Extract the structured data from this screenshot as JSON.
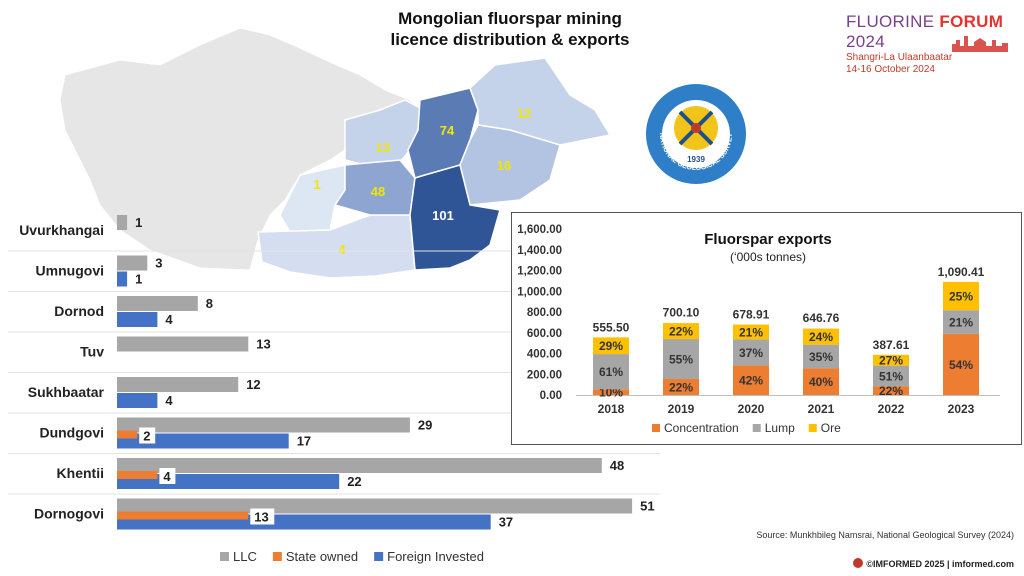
{
  "title": {
    "line1": "Mongolian fluorspar mining",
    "line2": "licence distribution & exports"
  },
  "brand": {
    "name_a": "FLUORINE ",
    "name_b": "FORUM",
    "name_c": " 2024",
    "venue": "Shangri-La Ulaanbaatar",
    "dates": "14-16 October 2024"
  },
  "seal": {
    "text": "NATIONAL GEOLOGICAL SURVEY",
    "year": "1939"
  },
  "map": {
    "regions": [
      {
        "id": "khentii",
        "value": "74",
        "color": "#5b7bb5"
      },
      {
        "id": "dornod",
        "value": "12",
        "color": "#c5d3ea"
      },
      {
        "id": "tuv",
        "value": "13",
        "color": "#c5d3ea"
      },
      {
        "id": "sukhbaatar",
        "value": "16",
        "color": "#b3c4e3"
      },
      {
        "id": "dundgovi",
        "value": "48",
        "color": "#8ea5d2"
      },
      {
        "id": "dornogovi",
        "value": "101",
        "color": "#2f5597"
      },
      {
        "id": "uvurkhangai",
        "value": "1",
        "color": "#dde6f3"
      },
      {
        "id": "umnugovi",
        "value": "4",
        "color": "#d4def0"
      }
    ],
    "label_color": "#f2e600",
    "label_color_dark": "#ffffff"
  },
  "chart_data": [
    {
      "type": "bar",
      "orientation": "horizontal",
      "categories": [
        "Uvurkhangai",
        "Umnugovi",
        "Dornod",
        "Tuv",
        "Sukhbaatar",
        "Dundgovi",
        "Khentii",
        "Dornogovi"
      ],
      "series": [
        {
          "name": "LLC",
          "color": "#a6a6a6",
          "values": [
            1,
            3,
            8,
            13,
            12,
            29,
            48,
            51
          ]
        },
        {
          "name": "State owned",
          "color": "#ed7d31",
          "values": [
            0,
            0,
            0,
            0,
            0,
            2,
            4,
            13
          ]
        },
        {
          "name": "Foreign Invested",
          "color": "#4472c4",
          "values": [
            0,
            1,
            4,
            0,
            4,
            17,
            22,
            37
          ]
        }
      ],
      "legend_position": "bottom"
    },
    {
      "type": "bar",
      "stacked": true,
      "title": "Fluorspar exports",
      "subtitle": "(‘000s tonnes)",
      "categories": [
        "2018",
        "2019",
        "2020",
        "2021",
        "2022",
        "2023"
      ],
      "totals": [
        "555.50",
        "700.10",
        "678.91",
        "646.76",
        "387.61",
        "1,090.41"
      ],
      "total_values": [
        555.5,
        700.1,
        678.91,
        646.76,
        387.61,
        1090.41
      ],
      "series": [
        {
          "name": "Concentration",
          "color": "#ed7d31",
          "share": [
            0.1,
            0.22,
            0.42,
            0.4,
            0.22,
            0.54
          ],
          "labels": [
            "10%",
            "22%",
            "42%",
            "40%",
            "22%",
            "54%"
          ]
        },
        {
          "name": "Lump",
          "color": "#a6a6a6",
          "share": [
            0.61,
            0.55,
            0.37,
            0.35,
            0.51,
            0.21
          ],
          "labels": [
            "61%",
            "55%",
            "37%",
            "35%",
            "51%",
            "21%"
          ]
        },
        {
          "name": "Ore",
          "color": "#ffc000",
          "share": [
            0.29,
            0.22,
            0.21,
            0.24,
            0.27,
            0.25
          ],
          "labels": [
            "29%",
            "22%",
            "21%",
            "24%",
            "27%",
            "25%"
          ]
        }
      ],
      "yticks": [
        "0.00",
        "200.00",
        "400.00",
        "600.00",
        "800.00",
        "1,000.00",
        "1,200.00",
        "1,400.00",
        "1,600.00"
      ],
      "ylim": [
        0,
        1600
      ],
      "grid": false,
      "legend_position": "bottom"
    }
  ],
  "source": "Source: Munkhbileg Namsrai, National Geological Survey (2024)",
  "copyright": "©IMFORMED 2025  |  imformed.com"
}
